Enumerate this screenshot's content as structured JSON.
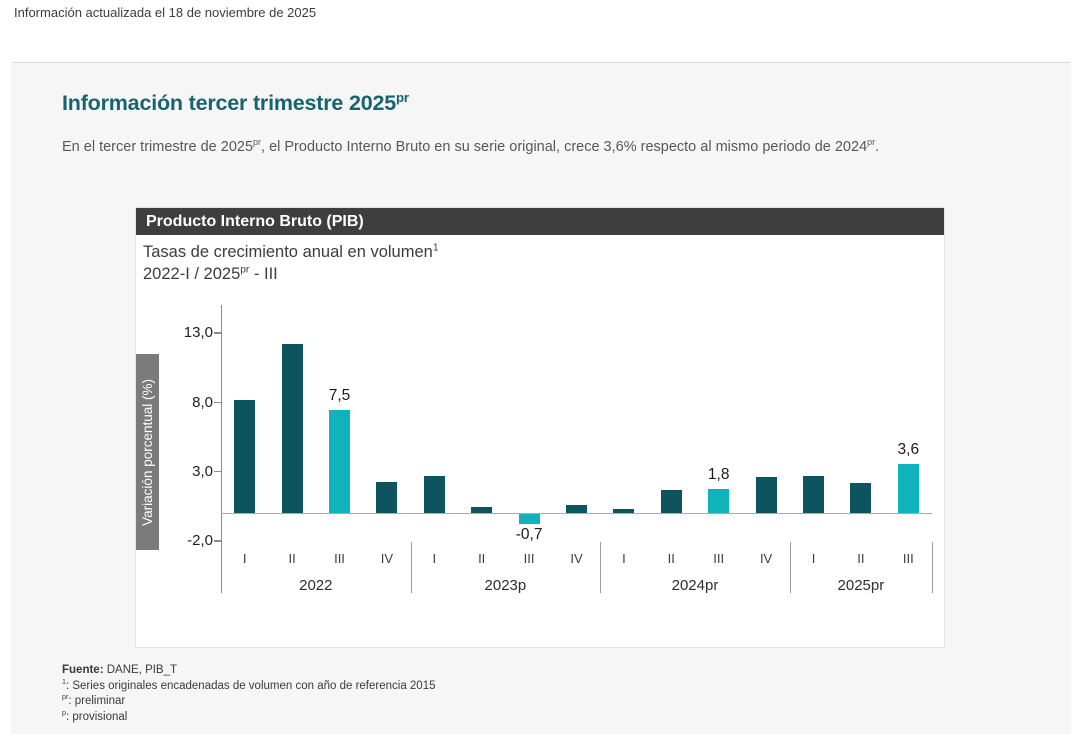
{
  "page": {
    "top_note": "Información actualizada el 18 de noviembre de 2025",
    "section_title": [
      [
        "t",
        "Información tercer trimestre 2025"
      ],
      [
        "s",
        "pr"
      ]
    ],
    "intro": [
      [
        "t",
        "En el tercer trimestre de 2025"
      ],
      [
        "s",
        "pr"
      ],
      [
        "t",
        ", el Producto Interno Bruto en su serie original, crece 3,6% respecto al mismo periodo de 2024"
      ],
      [
        "s",
        "pr"
      ],
      [
        "t",
        "."
      ]
    ]
  },
  "chart_data": {
    "type": "bar",
    "title": "Producto Interno Bruto (PIB)",
    "subtitle_line1": [
      [
        "t",
        "Tasas de crecimiento anual en volumen"
      ],
      [
        "s",
        "1"
      ]
    ],
    "subtitle_line2": [
      [
        "t",
        "2022-I / 2025"
      ],
      [
        "s",
        "pr"
      ],
      [
        "t",
        " - III"
      ]
    ],
    "ylabel": "Variación porcentual (%)",
    "ylim": [
      -3.5,
      14.5
    ],
    "grid": false,
    "legend": "none",
    "yticks": [
      {
        "value": 13.0,
        "label": "13,0"
      },
      {
        "value": 8.0,
        "label": "8,0"
      },
      {
        "value": 3.0,
        "label": "3,0"
      },
      {
        "value": -2.0,
        "label": "-2,0"
      }
    ],
    "bar_color": "#0d545e",
    "highlight_color": "#0fb3bb",
    "groups": [
      {
        "year": "2022",
        "quarters": [
          "I",
          "II",
          "III",
          "IV"
        ],
        "values": [
          8.2,
          12.2,
          7.5,
          2.3
        ],
        "highlight": [
          false,
          false,
          true,
          false
        ],
        "point_labels": [
          "",
          "",
          "7,5",
          ""
        ]
      },
      {
        "year": "2023p",
        "quarters": [
          "I",
          "II",
          "III",
          "IV"
        ],
        "values": [
          2.7,
          0.5,
          -0.7,
          0.6
        ],
        "highlight": [
          false,
          false,
          true,
          false
        ],
        "point_labels": [
          "",
          "",
          "-0,7",
          ""
        ]
      },
      {
        "year": "2024pr",
        "quarters": [
          "I",
          "II",
          "III",
          "IV"
        ],
        "values": [
          0.3,
          1.7,
          1.8,
          2.6
        ],
        "highlight": [
          false,
          false,
          true,
          false
        ],
        "point_labels": [
          "",
          "",
          "1,8",
          ""
        ]
      },
      {
        "year": "2025pr",
        "quarters": [
          "I",
          "II",
          "III"
        ],
        "values": [
          2.7,
          2.2,
          3.6
        ],
        "highlight": [
          false,
          false,
          true
        ],
        "point_labels": [
          "",
          "",
          "3,6"
        ]
      }
    ]
  },
  "footer": {
    "source": [
      [
        "b",
        "Fuente:"
      ],
      [
        "t",
        " DANE, PIB_T"
      ]
    ],
    "notes": [
      [
        [
          "s",
          "1"
        ],
        [
          "t",
          ": Series originales encadenadas de volumen con año de referencia 2015"
        ]
      ],
      [
        [
          "s",
          "pr"
        ],
        [
          "t",
          ": preliminar"
        ]
      ],
      [
        [
          "s",
          "p"
        ],
        [
          "t",
          ": provisional"
        ]
      ]
    ]
  }
}
